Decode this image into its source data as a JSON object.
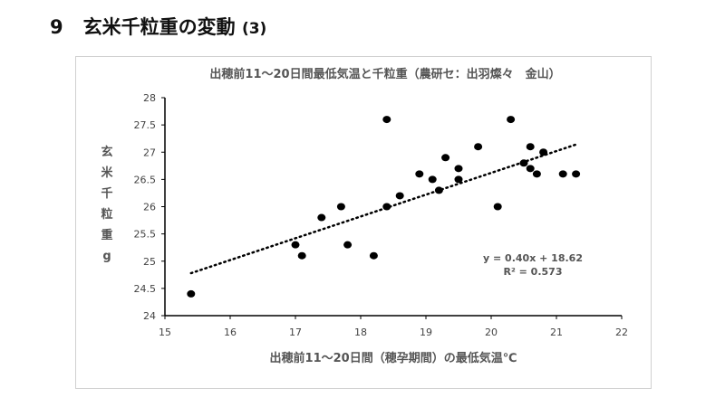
{
  "heading": {
    "number": "9",
    "title": "玄米千粒重の変動",
    "suffix": "(3)"
  },
  "chart_data": {
    "type": "scatter",
    "title": "出穂前11～20日間最低気温と千粒重（農研セ：出羽燦々　金山）",
    "xlabel": "出穂前11～20日間（穂孕期間）の最低気温℃",
    "ylabel": [
      "玄",
      "米",
      "千",
      "粒",
      "重",
      "g"
    ],
    "xlim": [
      15,
      22
    ],
    "ylim": [
      24,
      28
    ],
    "xticks": [
      "15",
      "16",
      "17",
      "18",
      "19",
      "20",
      "21",
      "22"
    ],
    "yticks": [
      "24",
      "24.5",
      "25",
      "25.5",
      "26",
      "26.5",
      "27",
      "27.5",
      "28"
    ],
    "points": [
      [
        15.4,
        24.4
      ],
      [
        17.0,
        25.3
      ],
      [
        17.1,
        25.1
      ],
      [
        17.4,
        25.8
      ],
      [
        17.7,
        26.0
      ],
      [
        17.8,
        25.3
      ],
      [
        18.2,
        25.1
      ],
      [
        18.4,
        27.6
      ],
      [
        18.4,
        26.0
      ],
      [
        18.6,
        26.2
      ],
      [
        18.9,
        26.6
      ],
      [
        19.1,
        26.5
      ],
      [
        19.2,
        26.3
      ],
      [
        19.3,
        26.9
      ],
      [
        19.5,
        26.7
      ],
      [
        19.5,
        26.5
      ],
      [
        19.8,
        27.1
      ],
      [
        20.1,
        26.0
      ],
      [
        20.3,
        27.6
      ],
      [
        20.5,
        26.8
      ],
      [
        20.6,
        27.1
      ],
      [
        20.6,
        26.7
      ],
      [
        20.7,
        26.6
      ],
      [
        20.8,
        27.0
      ],
      [
        21.1,
        26.6
      ],
      [
        21.3,
        26.6
      ]
    ],
    "trendline": {
      "slope": 0.4,
      "intercept": 18.62,
      "x_range": [
        15.4,
        21.3
      ],
      "style": "dotted"
    },
    "equation": "y = 0.40x + 18.62",
    "r2": "R² = 0.573",
    "grid": false,
    "legend": "none"
  }
}
